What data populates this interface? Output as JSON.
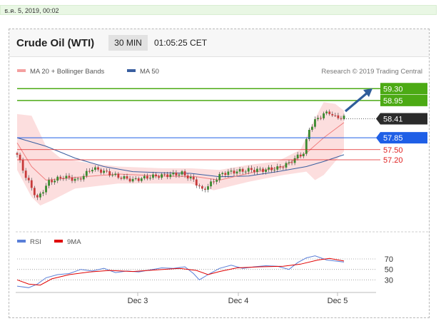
{
  "header": {
    "datetime": "ธ.ค. 5, 2019, 00:02",
    "instrument": "Crude Oil (WTI)",
    "interval": "30 MIN",
    "clock": "01:05:25 CET"
  },
  "colors": {
    "candle_up": "#3a8a2e",
    "candle_down": "#c73a3a",
    "bollinger_band": "#fbd3d3",
    "ma20": "#f08080",
    "ma50": "#3a5fa0",
    "resistance": "#4caa14",
    "pivot": "#1f5fe6",
    "support": "#e02020",
    "last_price": "#2b2b2b",
    "rsi": "#5a7fd8",
    "rsi_9ma": "#e00000",
    "arrow": "#2f5d9a"
  },
  "chart_data": [
    {
      "type": "candlestick",
      "legend": [
        {
          "label": "MA 20 + Bollinger Bands",
          "color": "#f4a0a0"
        },
        {
          "label": "MA 50",
          "color": "#3a5fa0"
        }
      ],
      "legend_position": "top-left",
      "watermark": "Research © 2019 Trading Central",
      "x_ticks": [
        "Dec 3",
        "Dec 4",
        "Dec 5"
      ],
      "ylim": [
        55.6,
        59.6
      ],
      "price_path": [
        {
          "t": 0,
          "p": 57.35
        },
        {
          "t": 3,
          "p": 56.7
        },
        {
          "t": 7,
          "p": 56.05
        },
        {
          "t": 11,
          "p": 56.55
        },
        {
          "t": 16,
          "p": 56.7
        },
        {
          "t": 21,
          "p": 56.6
        },
        {
          "t": 26,
          "p": 56.95
        },
        {
          "t": 30,
          "p": 56.85
        },
        {
          "t": 35,
          "p": 56.7
        },
        {
          "t": 40,
          "p": 56.6
        },
        {
          "t": 46,
          "p": 56.7
        },
        {
          "t": 52,
          "p": 56.75
        },
        {
          "t": 57,
          "p": 56.8
        },
        {
          "t": 61,
          "p": 56.6
        },
        {
          "t": 64,
          "p": 56.3
        },
        {
          "t": 67,
          "p": 56.5
        },
        {
          "t": 71,
          "p": 56.8
        },
        {
          "t": 75,
          "p": 56.85
        },
        {
          "t": 80,
          "p": 56.9
        },
        {
          "t": 85,
          "p": 56.9
        },
        {
          "t": 90,
          "p": 56.95
        },
        {
          "t": 94,
          "p": 57.1
        },
        {
          "t": 97,
          "p": 57.3
        },
        {
          "t": 99,
          "p": 57.4
        },
        {
          "t": 101,
          "p": 58.1
        },
        {
          "t": 103,
          "p": 58.35
        },
        {
          "t": 106,
          "p": 58.55
        },
        {
          "t": 108,
          "p": 58.6
        },
        {
          "t": 110,
          "p": 58.45
        },
        {
          "t": 113,
          "p": 58.45
        }
      ],
      "ma20": [
        {
          "t": 0,
          "p": 57.7
        },
        {
          "t": 5,
          "p": 57.0
        },
        {
          "t": 10,
          "p": 56.6
        },
        {
          "t": 20,
          "p": 56.68
        },
        {
          "t": 35,
          "p": 56.78
        },
        {
          "t": 50,
          "p": 56.72
        },
        {
          "t": 62,
          "p": 56.7
        },
        {
          "t": 70,
          "p": 56.6
        },
        {
          "t": 80,
          "p": 56.8
        },
        {
          "t": 92,
          "p": 57.0
        },
        {
          "t": 100,
          "p": 57.4
        },
        {
          "t": 106,
          "p": 57.85
        },
        {
          "t": 113,
          "p": 58.3
        }
      ],
      "ma50": [
        {
          "t": 0,
          "p": 57.85
        },
        {
          "t": 10,
          "p": 57.6
        },
        {
          "t": 20,
          "p": 57.25
        },
        {
          "t": 30,
          "p": 57.0
        },
        {
          "t": 40,
          "p": 56.85
        },
        {
          "t": 50,
          "p": 56.82
        },
        {
          "t": 60,
          "p": 56.8
        },
        {
          "t": 70,
          "p": 56.7
        },
        {
          "t": 80,
          "p": 56.72
        },
        {
          "t": 90,
          "p": 56.85
        },
        {
          "t": 100,
          "p": 57.0
        },
        {
          "t": 106,
          "p": 57.15
        },
        {
          "t": 113,
          "p": 57.35
        }
      ],
      "bollinger_upper": [
        {
          "t": 0,
          "p": 58.55
        },
        {
          "t": 5,
          "p": 58.5
        },
        {
          "t": 10,
          "p": 57.6
        },
        {
          "t": 15,
          "p": 57.25
        },
        {
          "t": 25,
          "p": 57.1
        },
        {
          "t": 35,
          "p": 57.0
        },
        {
          "t": 50,
          "p": 56.95
        },
        {
          "t": 60,
          "p": 56.95
        },
        {
          "t": 70,
          "p": 56.9
        },
        {
          "t": 80,
          "p": 57.05
        },
        {
          "t": 90,
          "p": 57.15
        },
        {
          "t": 98,
          "p": 57.5
        },
        {
          "t": 102,
          "p": 58.25
        },
        {
          "t": 106,
          "p": 58.9
        },
        {
          "t": 110,
          "p": 58.85
        },
        {
          "t": 113,
          "p": 58.65
        }
      ],
      "bollinger_lower": [
        {
          "t": 0,
          "p": 56.9
        },
        {
          "t": 5,
          "p": 56.1
        },
        {
          "t": 8,
          "p": 55.85
        },
        {
          "t": 12,
          "p": 56.0
        },
        {
          "t": 20,
          "p": 56.35
        },
        {
          "t": 35,
          "p": 56.5
        },
        {
          "t": 50,
          "p": 56.5
        },
        {
          "t": 60,
          "p": 56.5
        },
        {
          "t": 68,
          "p": 56.3
        },
        {
          "t": 80,
          "p": 56.55
        },
        {
          "t": 92,
          "p": 56.75
        },
        {
          "t": 100,
          "p": 56.85
        },
        {
          "t": 103,
          "p": 56.6
        },
        {
          "t": 106,
          "p": 56.75
        },
        {
          "t": 110,
          "p": 57.15
        },
        {
          "t": 113,
          "p": 57.45
        }
      ],
      "levels": [
        {
          "label": "59.30",
          "value": 59.3,
          "kind": "resistance"
        },
        {
          "label": "58.95",
          "value": 58.95,
          "kind": "resistance"
        },
        {
          "label": "58.41",
          "value": 58.41,
          "kind": "last"
        },
        {
          "label": "57.85",
          "value": 57.85,
          "kind": "pivot"
        },
        {
          "label": "57.50",
          "value": 57.5,
          "kind": "support"
        },
        {
          "label": "57.20",
          "value": 57.2,
          "kind": "support"
        }
      ]
    },
    {
      "type": "line",
      "name": "RSI",
      "legend": [
        {
          "label": "RSI",
          "color": "#5a7fd8"
        },
        {
          "label": "9MA",
          "color": "#e00000"
        }
      ],
      "ylim": [
        10,
        85
      ],
      "reference_levels": [
        70,
        50,
        30
      ],
      "rsi": [
        {
          "t": 0,
          "v": 18
        },
        {
          "t": 4,
          "v": 15
        },
        {
          "t": 7,
          "v": 22
        },
        {
          "t": 10,
          "v": 34
        },
        {
          "t": 14,
          "v": 40
        },
        {
          "t": 18,
          "v": 42
        },
        {
          "t": 22,
          "v": 50
        },
        {
          "t": 26,
          "v": 47
        },
        {
          "t": 30,
          "v": 52
        },
        {
          "t": 34,
          "v": 44
        },
        {
          "t": 38,
          "v": 47
        },
        {
          "t": 42,
          "v": 45
        },
        {
          "t": 46,
          "v": 49
        },
        {
          "t": 50,
          "v": 53
        },
        {
          "t": 54,
          "v": 52
        },
        {
          "t": 58,
          "v": 55
        },
        {
          "t": 61,
          "v": 42
        },
        {
          "t": 63,
          "v": 30
        },
        {
          "t": 66,
          "v": 40
        },
        {
          "t": 70,
          "v": 52
        },
        {
          "t": 74,
          "v": 58
        },
        {
          "t": 78,
          "v": 52
        },
        {
          "t": 82,
          "v": 55
        },
        {
          "t": 86,
          "v": 57
        },
        {
          "t": 90,
          "v": 56
        },
        {
          "t": 94,
          "v": 50
        },
        {
          "t": 97,
          "v": 63
        },
        {
          "t": 100,
          "v": 72
        },
        {
          "t": 103,
          "v": 76
        },
        {
          "t": 105,
          "v": 72
        },
        {
          "t": 107,
          "v": 68
        },
        {
          "t": 110,
          "v": 66
        },
        {
          "t": 113,
          "v": 64
        }
      ],
      "rsi_9ma": [
        {
          "t": 0,
          "v": 30
        },
        {
          "t": 4,
          "v": 22
        },
        {
          "t": 8,
          "v": 20
        },
        {
          "t": 12,
          "v": 32
        },
        {
          "t": 18,
          "v": 40
        },
        {
          "t": 25,
          "v": 45
        },
        {
          "t": 32,
          "v": 48
        },
        {
          "t": 40,
          "v": 46
        },
        {
          "t": 48,
          "v": 49
        },
        {
          "t": 56,
          "v": 52
        },
        {
          "t": 62,
          "v": 48
        },
        {
          "t": 66,
          "v": 40
        },
        {
          "t": 70,
          "v": 46
        },
        {
          "t": 76,
          "v": 53
        },
        {
          "t": 84,
          "v": 55
        },
        {
          "t": 92,
          "v": 56
        },
        {
          "t": 98,
          "v": 60
        },
        {
          "t": 104,
          "v": 68
        },
        {
          "t": 108,
          "v": 71
        },
        {
          "t": 113,
          "v": 66
        }
      ]
    }
  ]
}
